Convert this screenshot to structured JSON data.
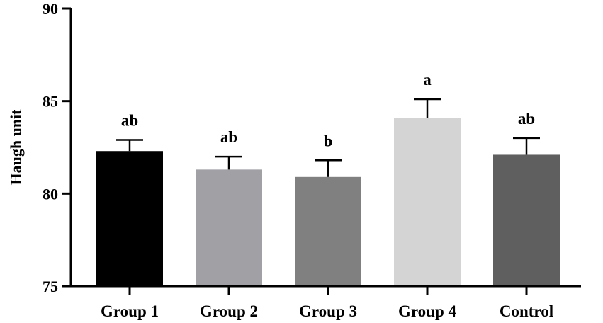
{
  "chart_data": {
    "type": "bar",
    "title": "",
    "xlabel": "",
    "ylabel": "Haugh unit",
    "ylim": [
      75,
      90
    ],
    "yticks": [
      75,
      80,
      85,
      90
    ],
    "grid": false,
    "categories": [
      "Group 1",
      "Group 2",
      "Group 3",
      "Group 4",
      "Control"
    ],
    "values": [
      82.3,
      81.3,
      80.9,
      84.1,
      82.1
    ],
    "errors": [
      0.6,
      0.7,
      0.9,
      1.0,
      0.9
    ],
    "significance": [
      "ab",
      "ab",
      "b",
      "a",
      "ab"
    ],
    "colors": [
      "#000000",
      "#a1a1a5",
      "#808080",
      "#d4d4d4",
      "#5f5f5f"
    ]
  }
}
